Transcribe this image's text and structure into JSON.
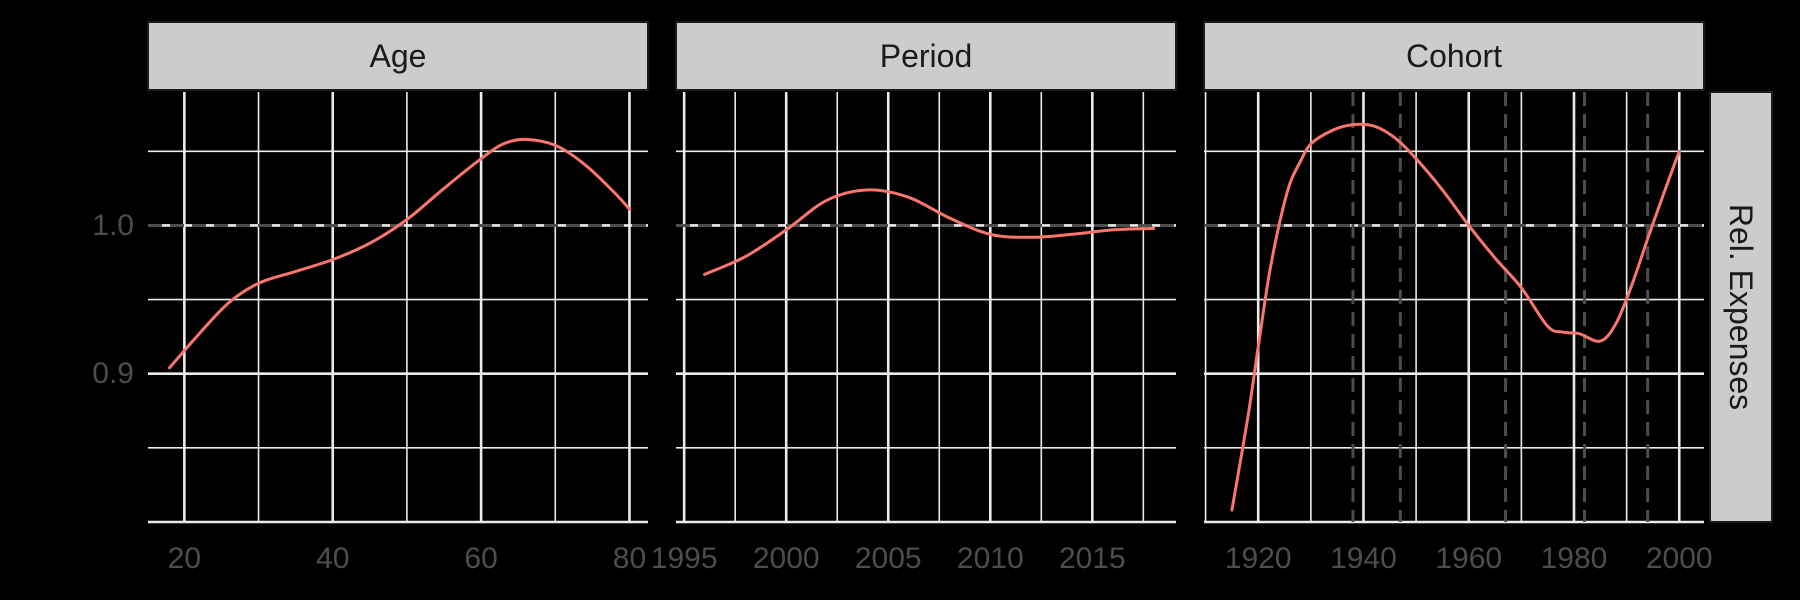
{
  "theme": {
    "background": "#000000",
    "grid": "#ebebeb",
    "strip_fill": "#cccccc",
    "text": "#1a1a1a",
    "tick_text": "#4d4d4d",
    "reference_line": "#4d4d4d",
    "series_color": "#f8766d"
  },
  "y_strip_label": "Rel. Expenses",
  "chart_data": [
    {
      "type": "line",
      "panel": "Age",
      "xlim": [
        15.1,
        82.5
      ],
      "ylim": [
        0.8,
        1.09
      ],
      "x_ticks": [
        20,
        40,
        60,
        80
      ],
      "x_tick_labels": [
        "20",
        "40",
        "60",
        "80"
      ],
      "y_ticks": [
        0.9,
        1.0
      ],
      "y_tick_labels": [
        "0.9",
        "1.0"
      ],
      "hline": 1.0,
      "vlines": [],
      "x": [
        18,
        22,
        26,
        30,
        35,
        40,
        45,
        50,
        55,
        60,
        63,
        66,
        70,
        74,
        78,
        80
      ],
      "y": [
        0.904,
        0.927,
        0.948,
        0.961,
        0.969,
        0.977,
        0.988,
        1.004,
        1.025,
        1.045,
        1.055,
        1.058,
        1.054,
        1.041,
        1.022,
        1.011
      ]
    },
    {
      "type": "line",
      "panel": "Period",
      "xlim": [
        1994.6,
        2019.1
      ],
      "ylim": [
        0.8,
        1.09
      ],
      "x_ticks": [
        1995,
        2000,
        2005,
        2010,
        2015
      ],
      "x_tick_labels": [
        "1995",
        "2000",
        "2005",
        "2010",
        "2015"
      ],
      "y_ticks": [
        0.9,
        1.0
      ],
      "y_tick_labels": [
        "0.9",
        "1.0"
      ],
      "hline": 1.0,
      "vlines": [],
      "x": [
        1996,
        1998,
        2000,
        2002,
        2004,
        2006,
        2008,
        2010,
        2012,
        2014,
        2016,
        2018
      ],
      "y": [
        0.967,
        0.979,
        0.997,
        1.017,
        1.024,
        1.019,
        1.005,
        0.994,
        0.992,
        0.994,
        0.997,
        0.998
      ]
    },
    {
      "type": "line",
      "panel": "Cohort",
      "xlim": [
        1909.7,
        2004.7
      ],
      "ylim": [
        0.8,
        1.09
      ],
      "x_ticks": [
        1920,
        1940,
        1960,
        1980,
        2000
      ],
      "x_tick_labels": [
        "1920",
        "1940",
        "1960",
        "1980",
        "2000"
      ],
      "y_ticks": [
        0.9,
        1.0
      ],
      "y_tick_labels": [
        "0.9",
        "1.0"
      ],
      "hline": 1.0,
      "vlines": [
        1938,
        1947,
        1967,
        1982,
        1994
      ],
      "x": [
        1915,
        1918,
        1920,
        1922,
        1924,
        1926,
        1928,
        1930,
        1934,
        1938,
        1942,
        1946,
        1950,
        1955,
        1960,
        1965,
        1970,
        1975,
        1978,
        1981,
        1985,
        1988,
        1991,
        1994,
        1997,
        2000
      ],
      "y": [
        0.808,
        0.87,
        0.918,
        0.965,
        1.001,
        1.028,
        1.043,
        1.055,
        1.064,
        1.068,
        1.067,
        1.059,
        1.045,
        1.024,
        1.0,
        0.978,
        0.958,
        0.932,
        0.928,
        0.927,
        0.922,
        0.934,
        0.96,
        0.991,
        1.021,
        1.05
      ]
    }
  ]
}
